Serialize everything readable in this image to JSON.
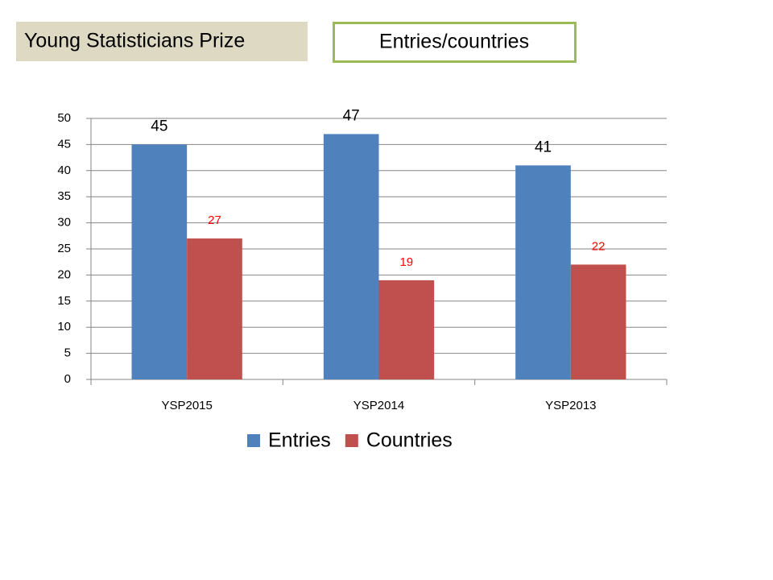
{
  "header": {
    "title": "Young Statisticians Prize",
    "subtitle": "Entries/countries"
  },
  "chart_data": {
    "type": "bar",
    "categories": [
      "YSP2015",
      "YSP2014",
      "YSP2013"
    ],
    "series": [
      {
        "name": "Entries",
        "color": "#4f81bd",
        "label_color": "#000000",
        "values": [
          45,
          47,
          41
        ]
      },
      {
        "name": "Countries",
        "color": "#c0504d",
        "label_color": "#ff0000",
        "values": [
          27,
          19,
          22
        ]
      }
    ],
    "ylim": [
      0,
      50
    ],
    "yticks": [
      0,
      5,
      10,
      15,
      20,
      25,
      30,
      35,
      40,
      45,
      50
    ],
    "grid": true,
    "legend": "bottom"
  }
}
